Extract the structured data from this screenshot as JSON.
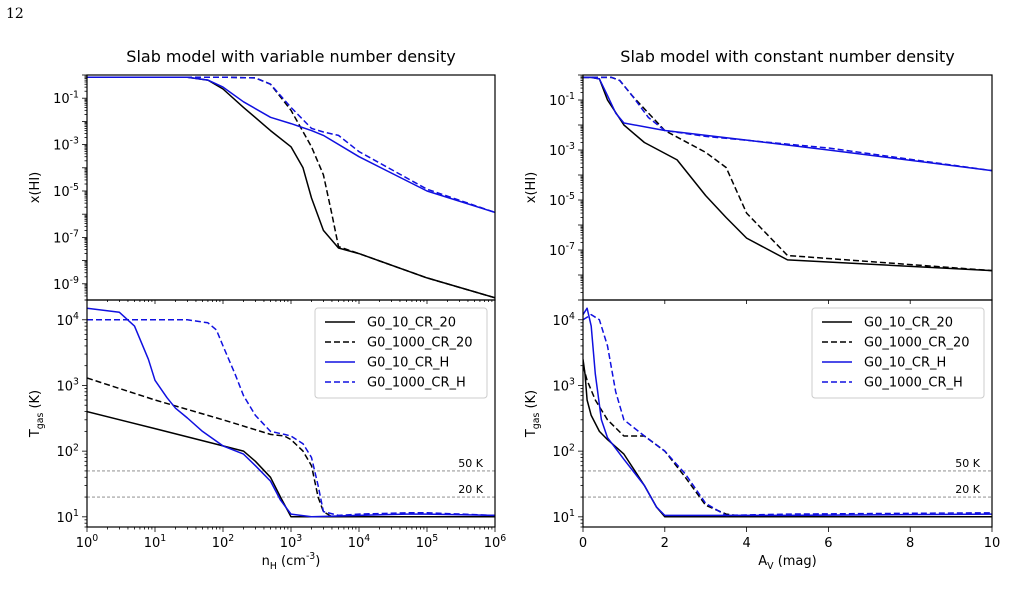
{
  "page_number": "12",
  "colors": {
    "black": "#000000",
    "blue": "#1010e0",
    "reference": "#808080"
  },
  "chart_data": [
    {
      "type": "line",
      "title": "Slab model with variable number density",
      "xlabel": "n_H (cm^-3)",
      "xscale": "log",
      "xlim": [
        1,
        1000000
      ],
      "x_ticks": [
        "10^0",
        "10^1",
        "10^2",
        "10^3",
        "10^4",
        "10^5",
        "10^6"
      ],
      "panels": [
        {
          "ylabel": "x(HI)",
          "yscale": "log",
          "ylim": [
            2e-10,
            1.0
          ],
          "y_ticks": [
            "10^-1",
            "10^-3",
            "10^-5",
            "10^-7",
            "10^-9"
          ],
          "series": [
            {
              "name": "G0_10_CR_20",
              "color": "#000000",
              "dash": "solid",
              "x": [
                1,
                10,
                30,
                60,
                100,
                200,
                500,
                1000,
                1500,
                2000,
                3000,
                5000,
                10000,
                100000,
                1000000
              ],
              "y": [
                0.8,
                0.8,
                0.8,
                0.6,
                0.25,
                0.04,
                0.004,
                0.0008,
                0.0001,
                5e-06,
                2e-07,
                3.5e-08,
                2e-08,
                1.8e-09,
                2.5e-10
              ]
            },
            {
              "name": "G0_1000_CR_20",
              "color": "#000000",
              "dash": "dashed",
              "x": [
                1,
                100,
                300,
                500,
                1000,
                2000,
                3000,
                4000,
                5000,
                10000,
                100000,
                1000000
              ],
              "y": [
                0.8,
                0.8,
                0.75,
                0.4,
                0.03,
                0.0008,
                5e-05,
                1e-06,
                4e-08,
                2e-08,
                1.8e-09,
                2.5e-10
              ]
            },
            {
              "name": "G0_10_CR_H",
              "color": "#1010e0",
              "dash": "solid",
              "x": [
                1,
                10,
                30,
                60,
                100,
                200,
                500,
                1000,
                2000,
                3000,
                10000,
                100000,
                1000000
              ],
              "y": [
                0.8,
                0.8,
                0.8,
                0.6,
                0.3,
                0.07,
                0.015,
                0.008,
                0.004,
                0.0025,
                0.0003,
                1e-05,
                1.2e-06
              ]
            },
            {
              "name": "G0_1000_CR_H",
              "color": "#1010e0",
              "dash": "dashed",
              "x": [
                1,
                100,
                300,
                500,
                1000,
                2000,
                3000,
                5000,
                10000,
                100000,
                1000000
              ],
              "y": [
                0.8,
                0.8,
                0.75,
                0.4,
                0.04,
                0.005,
                0.0035,
                0.0025,
                0.0005,
                1.2e-05,
                1.2e-06
              ]
            }
          ]
        },
        {
          "ylabel": "T_gas (K)",
          "yscale": "log",
          "ylim": [
            7,
            20000
          ],
          "y_ticks": [
            "10^1",
            "10^2",
            "10^3",
            "10^4"
          ],
          "reference_lines": [
            {
              "y": 50,
              "label": "50 K"
            },
            {
              "y": 20,
              "label": "20 K"
            }
          ],
          "legend": "top-right",
          "series": [
            {
              "name": "G0_10_CR_20",
              "color": "#000000",
              "dash": "solid",
              "x": [
                1,
                10,
                100,
                200,
                300,
                500,
                700,
                1000,
                2000,
                10000,
                100000,
                1000000
              ],
              "y": [
                400,
                220,
                120,
                100,
                70,
                40,
                20,
                10,
                10,
                10,
                10,
                10
              ]
            },
            {
              "name": "G0_1000_CR_20",
              "color": "#000000",
              "dash": "dashed",
              "x": [
                1,
                10,
                100,
                500,
                800,
                1000,
                1500,
                2000,
                2500,
                3000,
                4000,
                10000,
                100000,
                1000000
              ],
              "y": [
                1300,
                600,
                300,
                180,
                170,
                150,
                100,
                60,
                20,
                12,
                10,
                10,
                10,
                10
              ]
            },
            {
              "name": "G0_10_CR_H",
              "color": "#1010e0",
              "dash": "solid",
              "x": [
                1,
                3,
                5,
                8,
                10,
                15,
                20,
                30,
                50,
                100,
                200,
                300,
                500,
                700,
                1000,
                2000,
                10000,
                50000,
                100000,
                1000000
              ],
              "y": [
                15000,
                13000,
                8000,
                2500,
                1200,
                650,
                450,
                320,
                200,
                120,
                90,
                60,
                35,
                18,
                11,
                10,
                10.5,
                11,
                11,
                10.5
              ]
            },
            {
              "name": "G0_1000_CR_H",
              "color": "#1010e0",
              "dash": "dashed",
              "x": [
                1,
                30,
                60,
                80,
                100,
                150,
                200,
                300,
                500,
                800,
                1000,
                1500,
                2000,
                2500,
                3000,
                5000,
                10000,
                50000,
                100000,
                1000000
              ],
              "y": [
                10000,
                10000,
                9000,
                7000,
                4000,
                1500,
                700,
                350,
                200,
                180,
                170,
                130,
                80,
                30,
                12,
                10.5,
                11,
                11.5,
                11.5,
                10.5
              ]
            }
          ]
        }
      ]
    },
    {
      "type": "line",
      "title": "Slab model with constant number density",
      "xlabel": "A_V (mag)",
      "xscale": "linear",
      "xlim": [
        0,
        10
      ],
      "x_ticks": [
        "0",
        "2",
        "4",
        "6",
        "8",
        "10"
      ],
      "panels": [
        {
          "ylabel": "x(HI)",
          "yscale": "log",
          "ylim": [
            1e-09,
            1.0
          ],
          "y_ticks": [
            "10^-1",
            "10^-3",
            "10^-5",
            "10^-7"
          ],
          "series": [
            {
              "name": "G0_10_CR_20",
              "color": "#000000",
              "dash": "solid",
              "x": [
                0,
                0.2,
                0.4,
                0.6,
                1.0,
                1.5,
                2.3,
                3.0,
                3.5,
                4.0,
                5.0,
                10
              ],
              "y": [
                0.8,
                0.8,
                0.7,
                0.1,
                0.01,
                0.002,
                0.0004,
                1.5e-05,
                2e-06,
                3e-07,
                4e-08,
                1.5e-08
              ]
            },
            {
              "name": "G0_1000_CR_20",
              "color": "#000000",
              "dash": "dashed",
              "x": [
                0,
                0.4,
                0.7,
                0.9,
                1.2,
                1.6,
                2.0,
                3.0,
                3.5,
                4.0,
                5.0,
                10
              ],
              "y": [
                0.8,
                0.8,
                0.8,
                0.6,
                0.15,
                0.03,
                0.006,
                0.0008,
                0.0002,
                3e-06,
                6e-08,
                1.5e-08
              ]
            },
            {
              "name": "G0_10_CR_H",
              "color": "#1010e0",
              "dash": "solid",
              "x": [
                0,
                0.2,
                0.4,
                0.6,
                0.8,
                1.0,
                2.0,
                4.0,
                6.0,
                10
              ],
              "y": [
                0.8,
                0.8,
                0.7,
                0.15,
                0.03,
                0.012,
                0.006,
                0.0025,
                0.001,
                0.00015
              ]
            },
            {
              "name": "G0_1000_CR_H",
              "color": "#1010e0",
              "dash": "dashed",
              "x": [
                0,
                0.4,
                0.7,
                0.9,
                1.2,
                1.6,
                2.0,
                3.0,
                6.0,
                10
              ],
              "y": [
                0.8,
                0.8,
                0.8,
                0.6,
                0.15,
                0.02,
                0.006,
                0.0035,
                0.0012,
                0.00015
              ]
            }
          ]
        },
        {
          "ylabel": "T_gas (K)",
          "yscale": "log",
          "ylim": [
            7,
            20000
          ],
          "y_ticks": [
            "10^1",
            "10^2",
            "10^3",
            "10^4"
          ],
          "reference_lines": [
            {
              "y": 50,
              "label": "50 K"
            },
            {
              "y": 20,
              "label": "20 K"
            }
          ],
          "legend": "top-right",
          "series": [
            {
              "name": "G0_10_CR_20",
              "color": "#000000",
              "dash": "solid",
              "x": [
                0,
                0.05,
                0.1,
                0.2,
                0.4,
                0.6,
                1.0,
                1.5,
                1.8,
                2.0,
                2.5,
                10
              ],
              "y": [
                2500,
                1500,
                600,
                350,
                200,
                150,
                90,
                30,
                14,
                10,
                10,
                10
              ]
            },
            {
              "name": "G0_1000_CR_20",
              "color": "#000000",
              "dash": "dashed",
              "x": [
                0,
                0.1,
                0.3,
                0.6,
                1.0,
                1.5,
                2.0,
                2.5,
                3.0,
                3.5,
                4.0,
                10
              ],
              "y": [
                2000,
                1200,
                600,
                300,
                170,
                170,
                100,
                40,
                15,
                11,
                10,
                10
              ]
            },
            {
              "name": "G0_10_CR_H",
              "color": "#1010e0",
              "dash": "solid",
              "x": [
                0,
                0.1,
                0.2,
                0.3,
                0.45,
                0.6,
                0.8,
                1.0,
                1.5,
                1.8,
                2.0,
                5.0,
                10
              ],
              "y": [
                12000,
                15000,
                8000,
                1500,
                300,
                160,
                110,
                75,
                30,
                14,
                10.5,
                10.5,
                11
              ]
            },
            {
              "name": "G0_1000_CR_H",
              "color": "#1010e0",
              "dash": "dashed",
              "x": [
                0,
                0.2,
                0.4,
                0.6,
                0.8,
                1.0,
                1.5,
                2.0,
                2.5,
                3.0,
                3.5,
                5.0,
                10
              ],
              "y": [
                10000,
                12000,
                10000,
                4000,
                800,
                300,
                170,
                100,
                45,
                16,
                10.5,
                11,
                11.5
              ]
            }
          ]
        }
      ]
    }
  ]
}
